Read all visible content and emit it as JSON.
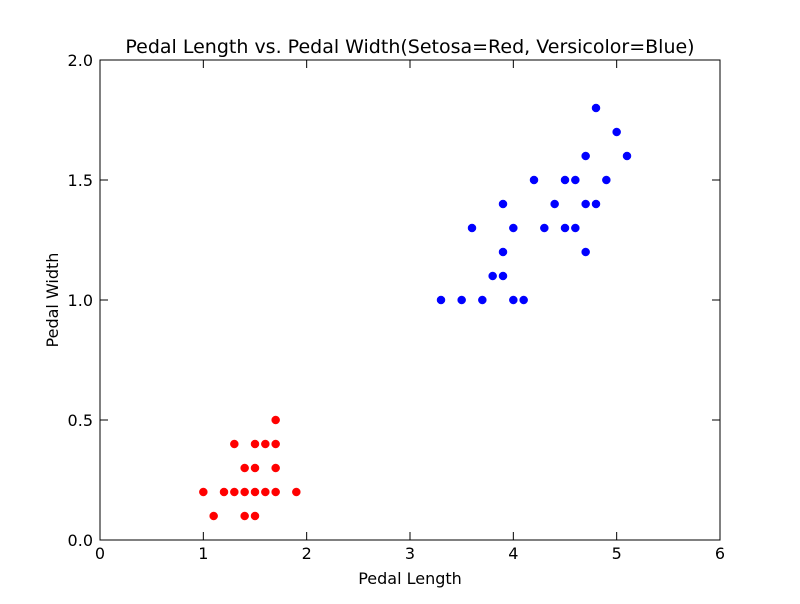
{
  "chart_data": {
    "type": "scatter",
    "title": "Pedal Length vs. Pedal Width(Setosa=Red, Versicolor=Blue)",
    "xlabel": "Pedal Length",
    "ylabel": "Pedal Width",
    "xlim": [
      0,
      6
    ],
    "ylim": [
      0,
      2
    ],
    "x_ticks": [
      0,
      1,
      2,
      3,
      4,
      5,
      6
    ],
    "x_tick_labels": [
      "0",
      "1",
      "2",
      "3",
      "4",
      "5",
      "6"
    ],
    "y_ticks": [
      0,
      0.5,
      1,
      1.5,
      2
    ],
    "y_tick_labels": [
      "0.0",
      "0.5",
      "1.0",
      "1.5",
      "2.0"
    ],
    "grid": false,
    "series": [
      {
        "color": "#ff0000",
        "points": [
          [
            1.0,
            0.2
          ],
          [
            1.1,
            0.1
          ],
          [
            1.2,
            0.2
          ],
          [
            1.3,
            0.2
          ],
          [
            1.3,
            0.4
          ],
          [
            1.4,
            0.1
          ],
          [
            1.4,
            0.2
          ],
          [
            1.4,
            0.3
          ],
          [
            1.5,
            0.1
          ],
          [
            1.5,
            0.2
          ],
          [
            1.5,
            0.3
          ],
          [
            1.5,
            0.4
          ],
          [
            1.6,
            0.2
          ],
          [
            1.6,
            0.4
          ],
          [
            1.7,
            0.2
          ],
          [
            1.7,
            0.3
          ],
          [
            1.7,
            0.4
          ],
          [
            1.7,
            0.5
          ],
          [
            1.9,
            0.2
          ]
        ]
      },
      {
        "color": "#0000ff",
        "points": [
          [
            3.3,
            1.0
          ],
          [
            3.5,
            1.0
          ],
          [
            3.6,
            1.3
          ],
          [
            3.7,
            1.0
          ],
          [
            3.8,
            1.1
          ],
          [
            3.9,
            1.1
          ],
          [
            3.9,
            1.2
          ],
          [
            3.9,
            1.4
          ],
          [
            4.0,
            1.0
          ],
          [
            4.0,
            1.3
          ],
          [
            4.1,
            1.0
          ],
          [
            4.2,
            1.5
          ],
          [
            4.3,
            1.3
          ],
          [
            4.4,
            1.4
          ],
          [
            4.5,
            1.3
          ],
          [
            4.5,
            1.5
          ],
          [
            4.6,
            1.3
          ],
          [
            4.6,
            1.5
          ],
          [
            4.7,
            1.2
          ],
          [
            4.7,
            1.4
          ],
          [
            4.7,
            1.6
          ],
          [
            4.8,
            1.4
          ],
          [
            4.8,
            1.8
          ],
          [
            4.9,
            1.5
          ],
          [
            5.0,
            1.7
          ],
          [
            5.1,
            1.6
          ]
        ]
      }
    ]
  }
}
